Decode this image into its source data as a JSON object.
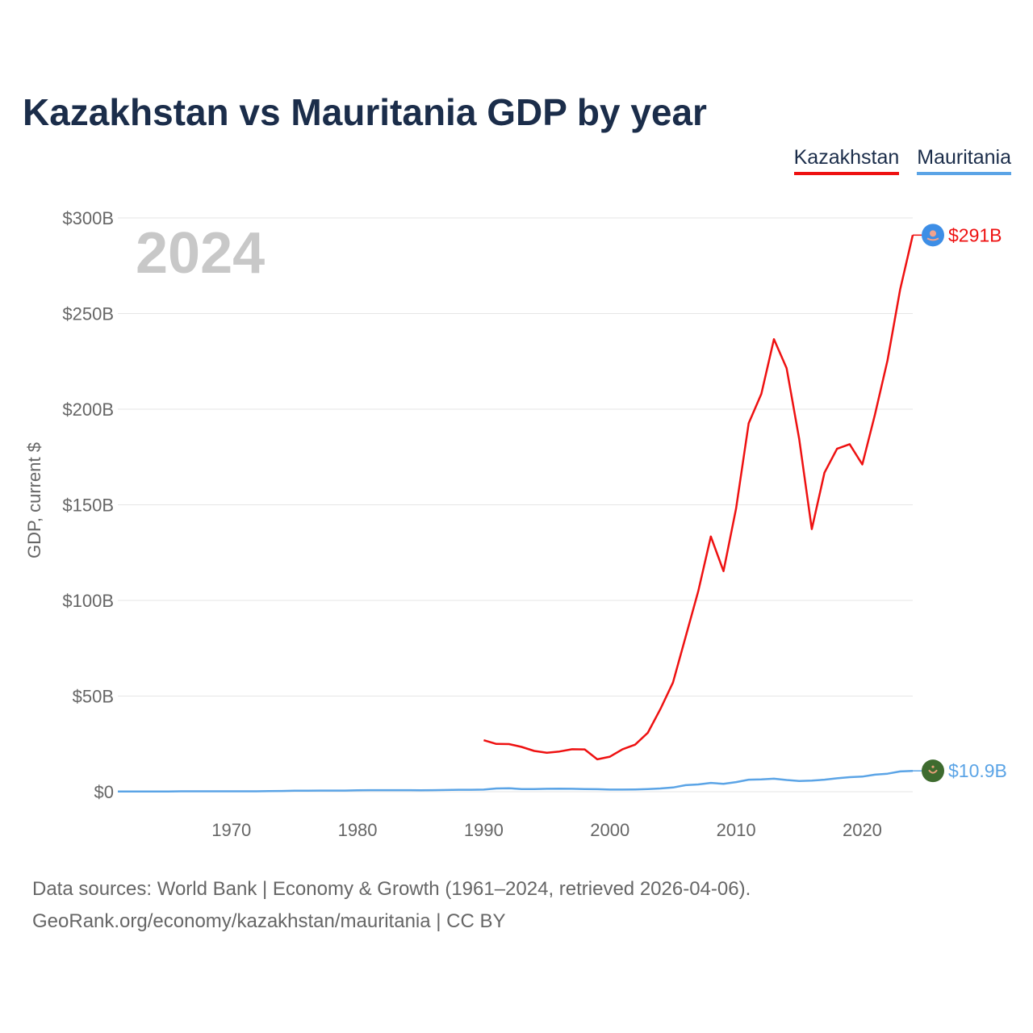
{
  "colors": {
    "kazakhstan": "#ee1111",
    "mauritania": "#5ba4e6",
    "title": "#1b2d4a",
    "grid": "#e6e6e6",
    "axis_text": "#666666",
    "year_watermark": "#c8c8c8"
  },
  "chart_data": {
    "type": "line",
    "title": "Kazakhstan vs Mauritania GDP by year",
    "ylabel": "GDP, current $",
    "xlabel": "",
    "xlim": [
      1961,
      2024
    ],
    "ylim": [
      0,
      300
    ],
    "y_unit": "billions USD",
    "y_ticks": [
      0,
      50,
      100,
      150,
      200,
      250,
      300
    ],
    "y_tick_labels": [
      "$0",
      "$50B",
      "$100B",
      "$150B",
      "$200B",
      "$250B",
      "$300B"
    ],
    "x_ticks": [
      1970,
      1980,
      1990,
      2000,
      2010,
      2020
    ],
    "x_tick_labels": [
      "1970",
      "1980",
      "1990",
      "2000",
      "2010",
      "2020"
    ],
    "grid": true,
    "legend_position": "top-right",
    "current_year_label": "2024",
    "series": [
      {
        "name": "Kazakhstan",
        "end_label": "$291B",
        "x": [
          1990,
          1991,
          1992,
          1993,
          1994,
          1995,
          1996,
          1997,
          1998,
          1999,
          2000,
          2001,
          2002,
          2003,
          2004,
          2005,
          2006,
          2007,
          2008,
          2009,
          2010,
          2011,
          2012,
          2013,
          2014,
          2015,
          2016,
          2017,
          2018,
          2019,
          2020,
          2021,
          2022,
          2023,
          2024
        ],
        "values": [
          26.9,
          25.0,
          24.9,
          23.4,
          21.3,
          20.4,
          21.0,
          22.2,
          22.1,
          16.9,
          18.3,
          22.2,
          24.6,
          30.8,
          43.2,
          57.1,
          81.0,
          104.8,
          133.4,
          115.3,
          148.1,
          192.6,
          208.0,
          236.6,
          221.4,
          184.4,
          137.3,
          166.8,
          179.3,
          181.7,
          171.1,
          197.1,
          225.5,
          262.6,
          291.0
        ]
      },
      {
        "name": "Mauritania",
        "end_label": "$10.9B",
        "x": [
          1961,
          1962,
          1963,
          1964,
          1965,
          1966,
          1967,
          1968,
          1969,
          1970,
          1971,
          1972,
          1973,
          1974,
          1975,
          1976,
          1977,
          1978,
          1979,
          1980,
          1981,
          1982,
          1983,
          1984,
          1985,
          1986,
          1987,
          1988,
          1989,
          1990,
          1991,
          1992,
          1993,
          1994,
          1995,
          1996,
          1997,
          1998,
          1999,
          2000,
          2001,
          2002,
          2003,
          2004,
          2005,
          2006,
          2007,
          2008,
          2009,
          2010,
          2011,
          2012,
          2013,
          2014,
          2015,
          2016,
          2017,
          2018,
          2019,
          2020,
          2021,
          2022,
          2023,
          2024
        ],
        "values": [
          0.1,
          0.1,
          0.1,
          0.1,
          0.1,
          0.2,
          0.2,
          0.2,
          0.2,
          0.2,
          0.2,
          0.2,
          0.3,
          0.4,
          0.5,
          0.5,
          0.6,
          0.6,
          0.6,
          0.7,
          0.8,
          0.8,
          0.8,
          0.8,
          0.7,
          0.8,
          0.9,
          1.0,
          1.0,
          1.1,
          1.7,
          1.8,
          1.4,
          1.4,
          1.5,
          1.6,
          1.5,
          1.4,
          1.3,
          1.1,
          1.1,
          1.2,
          1.4,
          1.7,
          2.2,
          3.4,
          3.8,
          4.6,
          4.1,
          5.0,
          6.3,
          6.4,
          6.8,
          6.1,
          5.6,
          5.8,
          6.3,
          7.0,
          7.6,
          7.9,
          8.9,
          9.4,
          10.6,
          10.9
        ]
      }
    ]
  },
  "footer": {
    "line1": "Data sources: World Bank | Economy & Growth (1961–2024, retrieved 2026-04-06).",
    "line2": "GeoRank.org/economy/kazakhstan/mauritania | CC BY"
  }
}
